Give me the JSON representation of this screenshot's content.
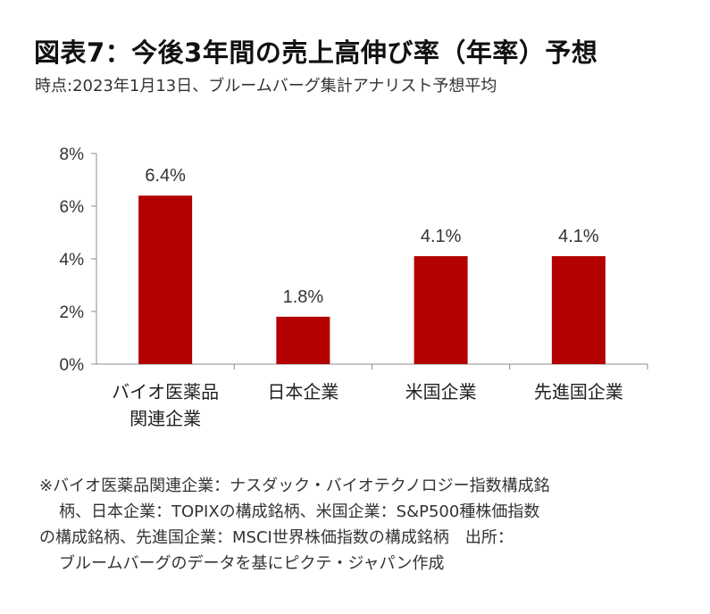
{
  "title": "図表7：今後3年間の売上高伸び率（年率）予想",
  "subtitle": "時点:2023年1月13日、ブルームバーグ集計アナリスト予想平均",
  "chart_data": {
    "type": "bar",
    "categories": [
      [
        "バイオ医薬品",
        "関連企業"
      ],
      [
        "日本企業"
      ],
      [
        "米国企業"
      ],
      [
        "先進国企業"
      ]
    ],
    "values": [
      6.4,
      1.8,
      4.1,
      4.1
    ],
    "data_labels": [
      "6.4%",
      "1.8%",
      "4.1%",
      "4.1%"
    ],
    "ylim": [
      0,
      8
    ],
    "yticks": [
      0,
      2,
      4,
      6,
      8
    ],
    "ytick_labels": [
      "0%",
      "2%",
      "4%",
      "6%",
      "8%"
    ],
    "bar_color": "#b30000",
    "grid": false,
    "legend": "none"
  },
  "note_lines": [
    "※バイオ医薬品関連企業：ナスダック・バイオテクノロジー指数構成銘",
    "柄、日本企業：TOPIXの構成銘柄、米国企業：S&P500種株価指数",
    "の構成銘柄、先進国企業：MSCI世界株価指数の構成銘柄　出所：",
    "ブルームバーグのデータを基にピクテ・ジャパン作成"
  ]
}
